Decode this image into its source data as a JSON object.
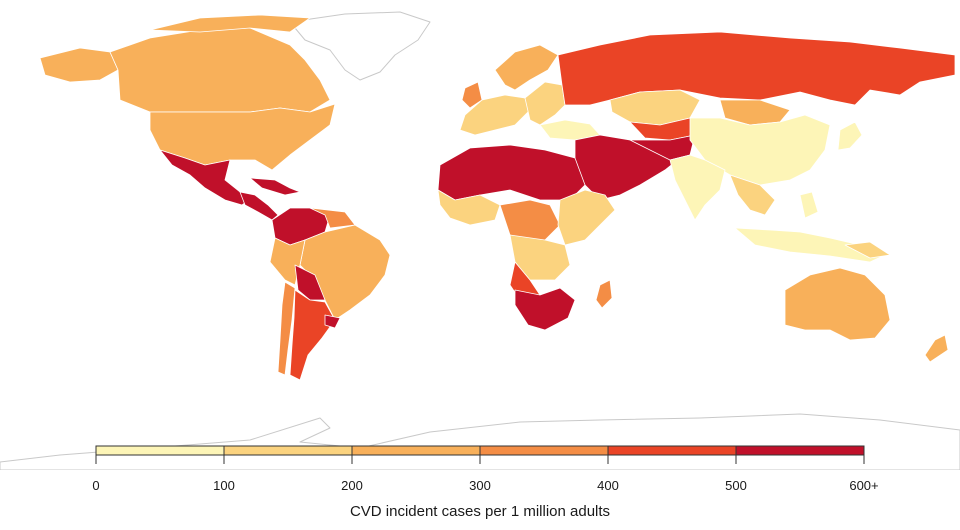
{
  "legend": {
    "title": "CVD incident cases per 1 million adults",
    "tick_labels": [
      "0",
      "100",
      "200",
      "300",
      "400",
      "500",
      "600+"
    ]
  },
  "color_scale": {
    "bins": [
      {
        "range": "0-100",
        "color": "#fdf5b7"
      },
      {
        "range": "100-200",
        "color": "#fbd37f"
      },
      {
        "range": "200-300",
        "color": "#f8b05a"
      },
      {
        "range": "300-400",
        "color": "#f48d45"
      },
      {
        "range": "400-500",
        "color": "#ea4426"
      },
      {
        "range": "500-600+",
        "color": "#c0102a"
      }
    ],
    "no_data_color": "#ffffff"
  }
}
